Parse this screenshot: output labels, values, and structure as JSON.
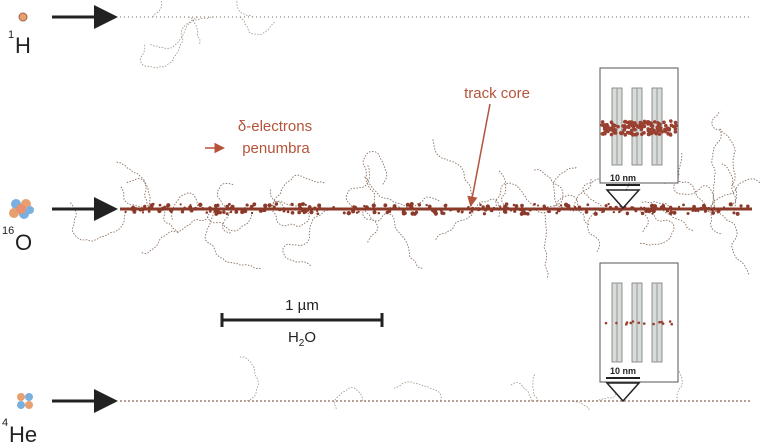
{
  "ions": [
    {
      "mass": "1",
      "symbol": "H"
    },
    {
      "mass": "16",
      "symbol": "O"
    },
    {
      "mass": "4",
      "symbol": "He"
    }
  ],
  "annotations": {
    "delta_electrons": "δ-electrons",
    "penumbra": "penumbra",
    "track_core": "track core"
  },
  "scale_bar": {
    "length": "1 µm",
    "medium": {
      "base": "H",
      "subscript": "2",
      "rest": "O"
    }
  },
  "insets": [
    {
      "scale": "10 nm"
    },
    {
      "scale": "10 nm"
    }
  ]
}
